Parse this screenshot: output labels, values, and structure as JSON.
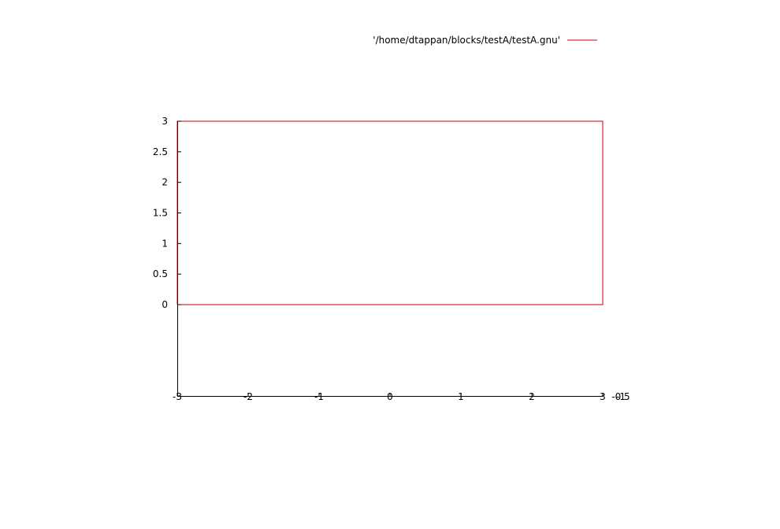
{
  "chart_data": {
    "type": "line",
    "title": "",
    "xlabel": "",
    "ylabel": "",
    "legend": {
      "placement": "top-right",
      "entries": [
        "'/home/dtappan/blocks/testA/testA.gnu'"
      ]
    },
    "series": [
      {
        "name": "'/home/dtappan/blocks/testA/testA.gnu'",
        "color": "#cc0000",
        "points": [
          [
            -3,
            0
          ],
          [
            3,
            0
          ],
          [
            3,
            3
          ],
          [
            -3,
            3
          ],
          [
            -3,
            0
          ]
        ]
      }
    ],
    "x_ticks": [
      "-3",
      "-2",
      "-1",
      "0",
      "1",
      "2",
      "3"
    ],
    "x_tick_values": [
      -3,
      -2,
      -1,
      0,
      1,
      2,
      3
    ],
    "y_ticks": [
      "0",
      "0.5",
      "1",
      "1.5",
      "2",
      "2.5",
      "3"
    ],
    "y_tick_values": [
      0,
      0.5,
      1,
      1.5,
      2,
      2.5,
      3
    ],
    "overlapping_tick_labels": [
      "-1",
      "-0.5"
    ],
    "xlim": [
      -3,
      3
    ],
    "ylim": [
      0,
      3
    ],
    "grid": false
  }
}
